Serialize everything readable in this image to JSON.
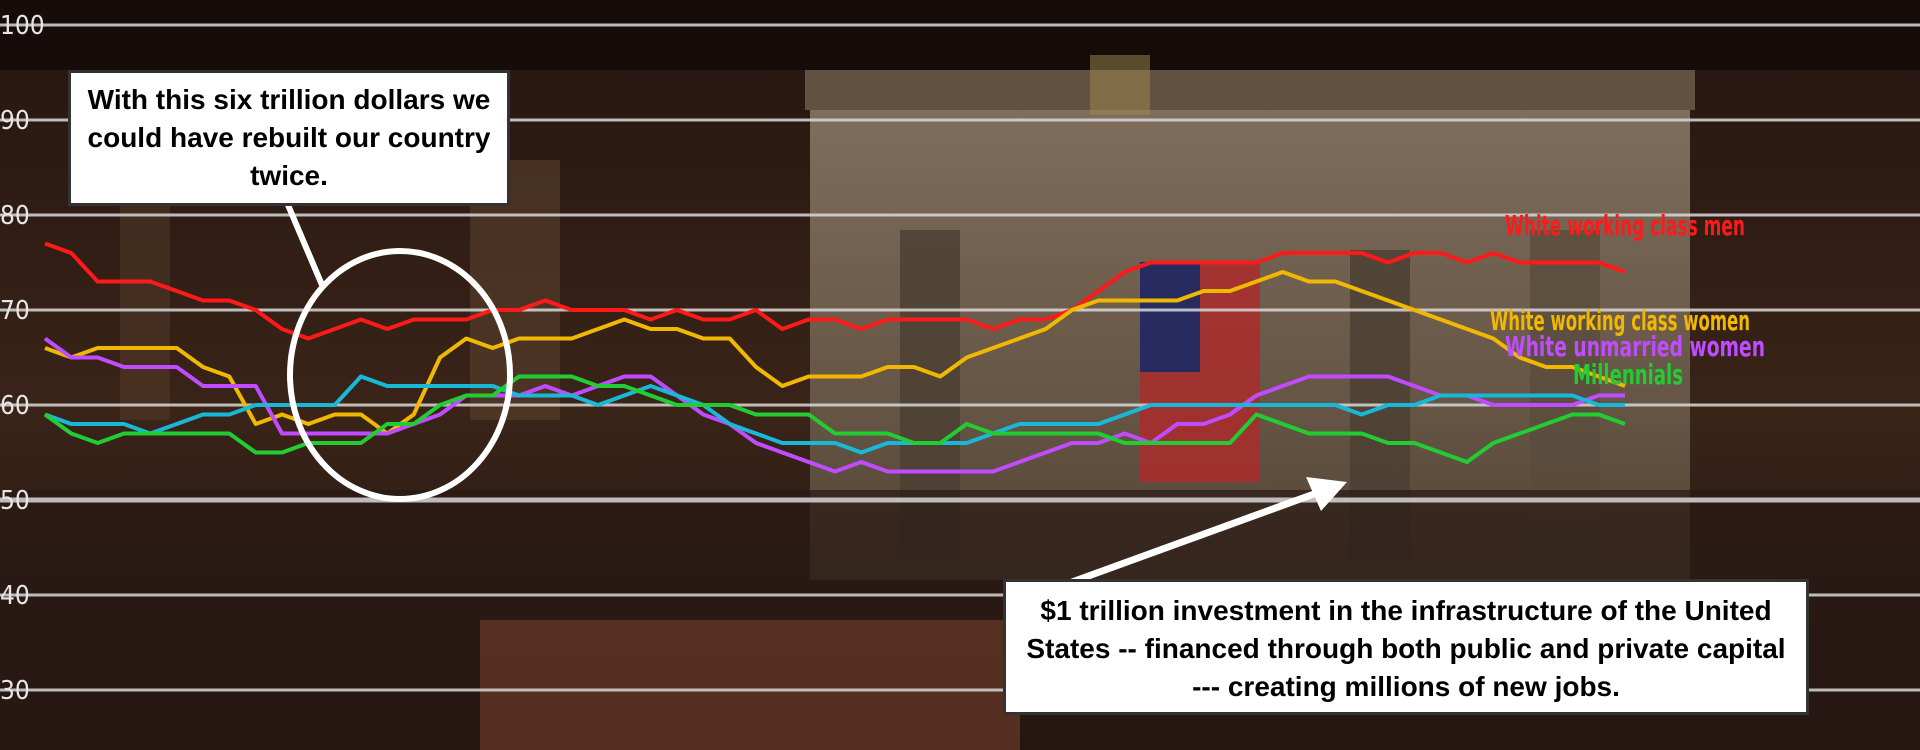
{
  "chart_data": {
    "type": "line",
    "ylim": [
      25,
      102
    ],
    "yticks": [
      30,
      40,
      50,
      60,
      70,
      80,
      90,
      100
    ],
    "grid": true,
    "title": "",
    "xlabel": "",
    "ylabel": "",
    "series": [
      {
        "name": "White working class men",
        "color": "#ff1a1a",
        "values": [
          77,
          76,
          73,
          73,
          73,
          72,
          71,
          71,
          70,
          68,
          67,
          68,
          69,
          68,
          69,
          69,
          69,
          70,
          70,
          71,
          70,
          70,
          70,
          69,
          70,
          69,
          69,
          70,
          68,
          69,
          69,
          68,
          69,
          69,
          69,
          69,
          68,
          69,
          69,
          70,
          72,
          74,
          75,
          75,
          75,
          75,
          75,
          76,
          76,
          76,
          76,
          75,
          76,
          76,
          75,
          76,
          75,
          75,
          75,
          75,
          74
        ]
      },
      {
        "name": "White working class women",
        "color": "#f0b800",
        "values": [
          66,
          65,
          66,
          66,
          66,
          66,
          64,
          63,
          58,
          59,
          58,
          59,
          59,
          57,
          59,
          65,
          67,
          66,
          67,
          67,
          67,
          68,
          69,
          68,
          68,
          67,
          67,
          64,
          62,
          63,
          63,
          63,
          64,
          64,
          63,
          65,
          66,
          67,
          68,
          70,
          71,
          71,
          71,
          71,
          72,
          72,
          73,
          74,
          73,
          73,
          72,
          71,
          70,
          69,
          68,
          67,
          65,
          64,
          64,
          63,
          62
        ]
      },
      {
        "name": "White unmarried women",
        "color": "#c04cff",
        "values": [
          67,
          65,
          65,
          64,
          64,
          64,
          62,
          62,
          62,
          57,
          57,
          57,
          57,
          57,
          58,
          59,
          61,
          61,
          61,
          62,
          61,
          62,
          63,
          63,
          61,
          59,
          58,
          56,
          55,
          54,
          53,
          54,
          53,
          53,
          53,
          53,
          53,
          54,
          55,
          56,
          56,
          57,
          56,
          58,
          58,
          59,
          61,
          62,
          63,
          63,
          63,
          63,
          62,
          61,
          61,
          60,
          60,
          60,
          60,
          61,
          61
        ]
      },
      {
        "name": "",
        "color": "#1ab8d8",
        "values": [
          59,
          58,
          58,
          58,
          57,
          58,
          59,
          59,
          60,
          60,
          60,
          60,
          63,
          62,
          62,
          62,
          62,
          62,
          61,
          61,
          61,
          60,
          61,
          62,
          61,
          60,
          58,
          57,
          56,
          56,
          56,
          55,
          56,
          56,
          56,
          56,
          57,
          58,
          58,
          58,
          58,
          59,
          60,
          60,
          60,
          60,
          60,
          60,
          60,
          60,
          59,
          60,
          60,
          61,
          61,
          61,
          61,
          61,
          61,
          60,
          60
        ]
      },
      {
        "name": "Millennials",
        "color": "#22cc33",
        "values": [
          59,
          57,
          56,
          57,
          57,
          57,
          57,
          57,
          55,
          55,
          56,
          56,
          56,
          58,
          58,
          60,
          61,
          61,
          63,
          63,
          63,
          62,
          62,
          61,
          60,
          60,
          60,
          59,
          59,
          59,
          57,
          57,
          57,
          56,
          56,
          58,
          57,
          57,
          57,
          57,
          57,
          56,
          56,
          56,
          56,
          56,
          59,
          58,
          57,
          57,
          57,
          56,
          56,
          55,
          54,
          56,
          57,
          58,
          59,
          59,
          58
        ]
      }
    ],
    "series_labels": [
      "White working class men",
      "White working class women",
      "White unmarried women",
      "Millennials"
    ],
    "annotations": [
      "With this six trillion dollars we could have rebuilt our country twice.",
      "$1 trillion investment in the infrastructure of the United States -- financed through both public and private capital --- creating millions of new jobs."
    ]
  },
  "background_description_colors": {
    "chamber_dark": "#1a0d0a",
    "stone": "#8a7a66",
    "flag_red": "#b03030",
    "flag_blue": "#1a2a66"
  }
}
